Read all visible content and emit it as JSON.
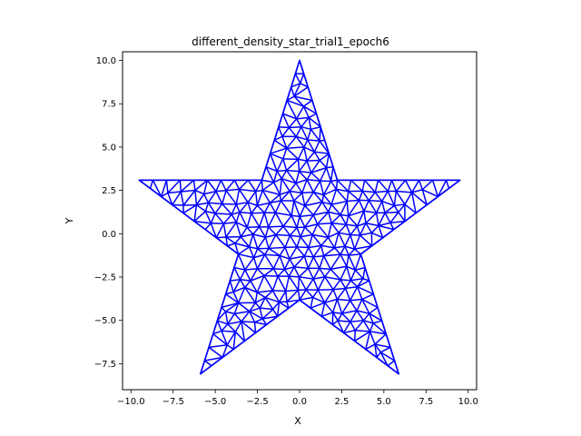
{
  "chart_data": {
    "type": "line",
    "title": "different_density_star_trial1_epoch6",
    "xlabel": "X",
    "ylabel": "Y",
    "xlim": [
      -10.5,
      10.5
    ],
    "ylim": [
      -9.0,
      10.5
    ],
    "aspect": "equal",
    "grid": false,
    "legend": "none",
    "series_color": "#0000ff",
    "x_ticks": [
      -10.0,
      -7.5,
      -5.0,
      -2.5,
      0.0,
      2.5,
      5.0,
      7.5,
      10.0
    ],
    "x_tick_labels": [
      "−10.0",
      "−7.5",
      "−5.0",
      "−2.5",
      "0.0",
      "2.5",
      "5.0",
      "7.5",
      "10.0"
    ],
    "y_ticks": [
      -7.5,
      -5.0,
      -2.5,
      0.0,
      2.5,
      5.0,
      7.5,
      10.0
    ],
    "y_tick_labels": [
      "−7.5",
      "−5.0",
      "−2.5",
      "0.0",
      "2.5",
      "5.0",
      "7.5",
      "10.0"
    ],
    "star_outline": [
      [
        0.0,
        10.0
      ],
      [
        2.24,
        3.09
      ],
      [
        9.51,
        3.09
      ],
      [
        3.63,
        -1.18
      ],
      [
        5.88,
        -8.09
      ],
      [
        0.0,
        -3.82
      ],
      [
        -5.88,
        -8.09
      ],
      [
        -3.63,
        -1.18
      ],
      [
        -9.51,
        3.09
      ],
      [
        -2.24,
        3.09
      ]
    ]
  }
}
